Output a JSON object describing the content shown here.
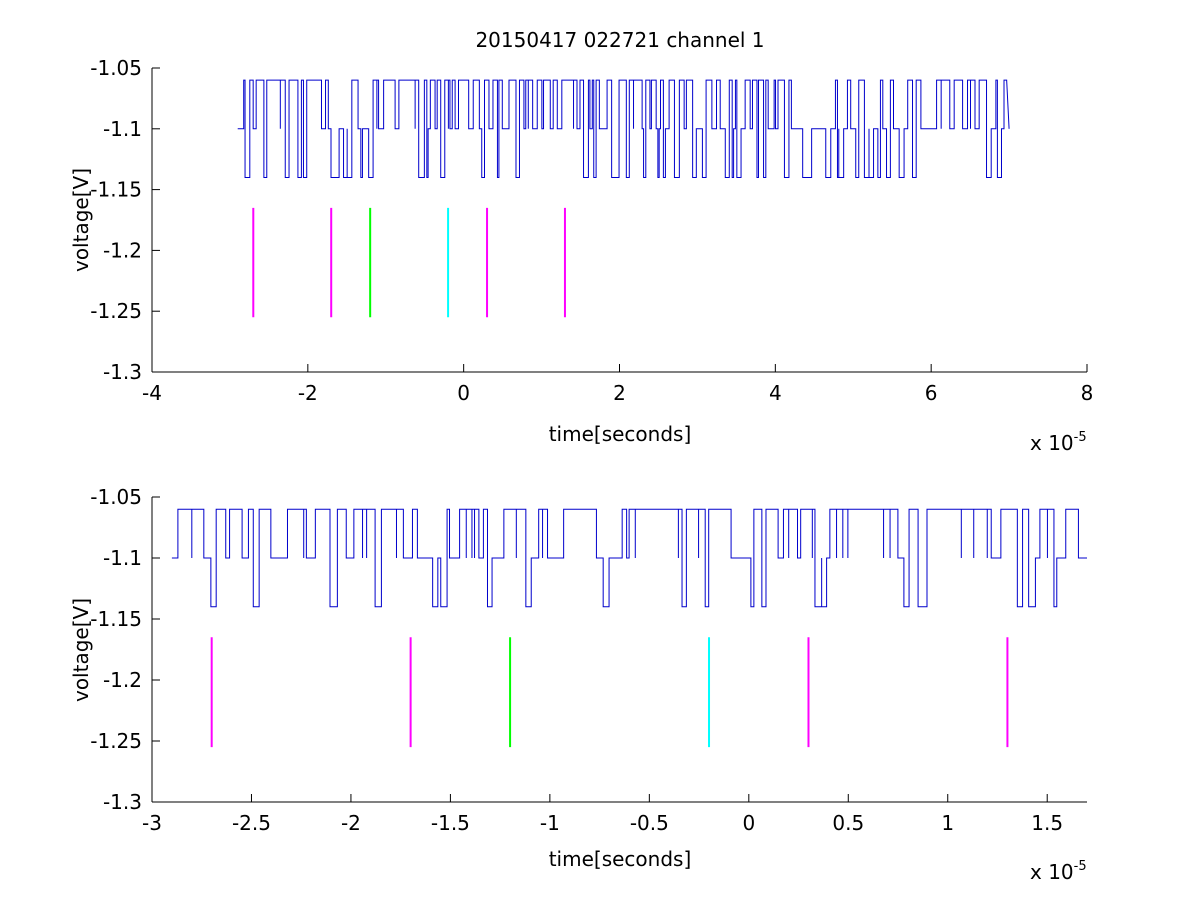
{
  "figure": {
    "title": "20150417 022721 channel 1"
  },
  "chart_data": [
    {
      "type": "line",
      "title": "20150417 022721 channel 1",
      "xlabel": "time[seconds]",
      "ylabel": "voltage[V]",
      "x_exponent_base": "x 10",
      "x_exponent": "-5",
      "xlim": [
        -4,
        8
      ],
      "ylim": [
        -1.3,
        -1.05
      ],
      "xticks": [
        -4,
        -2,
        0,
        2,
        4,
        6,
        8
      ],
      "xtick_labels": [
        "-4",
        "-2",
        "0",
        "2",
        "4",
        "6",
        "8"
      ],
      "yticks": [
        -1.05,
        -1.1,
        -1.15,
        -1.2,
        -1.25,
        -1.3
      ],
      "ytick_labels": [
        "-1.05",
        "-1.1",
        "-1.15",
        "-1.2",
        "-1.25",
        "-1.3"
      ],
      "grid": false,
      "signal": {
        "color": "#0000cc",
        "x_start": -2.9,
        "x_end": 7.0,
        "baseline": -1.1,
        "high": -1.06,
        "low": -1.14
      },
      "markers": [
        {
          "x": -2.7,
          "color": "#ff00ff",
          "y_top": -1.165,
          "y_bottom": -1.255
        },
        {
          "x": -1.7,
          "color": "#ff00ff",
          "y_top": -1.165,
          "y_bottom": -1.255
        },
        {
          "x": -1.2,
          "color": "#00ff00",
          "y_top": -1.165,
          "y_bottom": -1.255
        },
        {
          "x": -0.2,
          "color": "#00ffff",
          "y_top": -1.165,
          "y_bottom": -1.255
        },
        {
          "x": 0.3,
          "color": "#ff00ff",
          "y_top": -1.165,
          "y_bottom": -1.255
        },
        {
          "x": 1.3,
          "color": "#ff00ff",
          "y_top": -1.165,
          "y_bottom": -1.255
        }
      ]
    },
    {
      "type": "line",
      "title": "",
      "xlabel": "time[seconds]",
      "ylabel": "voltage[V]",
      "x_exponent_base": "x 10",
      "x_exponent": "-5",
      "xlim": [
        -3.0,
        1.7
      ],
      "ylim": [
        -1.3,
        -1.05
      ],
      "xticks": [
        -3,
        -2.5,
        -2,
        -1.5,
        -1,
        -0.5,
        0,
        0.5,
        1,
        1.5
      ],
      "xtick_labels": [
        "-3",
        "-2.5",
        "-2",
        "-1.5",
        "-1",
        "-0.5",
        "0",
        "0.5",
        "1",
        "1.5"
      ],
      "yticks": [
        -1.05,
        -1.1,
        -1.15,
        -1.2,
        -1.25,
        -1.3
      ],
      "ytick_labels": [
        "-1.05",
        "-1.1",
        "-1.15",
        "-1.2",
        "-1.25",
        "-1.3"
      ],
      "grid": false,
      "signal": {
        "color": "#0000cc",
        "x_start": -2.9,
        "x_end": 1.7,
        "baseline": -1.1,
        "high": -1.06,
        "low": -1.14
      },
      "markers": [
        {
          "x": -2.7,
          "color": "#ff00ff",
          "y_top": -1.165,
          "y_bottom": -1.255
        },
        {
          "x": -1.7,
          "color": "#ff00ff",
          "y_top": -1.165,
          "y_bottom": -1.255
        },
        {
          "x": -1.2,
          "color": "#00ff00",
          "y_top": -1.165,
          "y_bottom": -1.255
        },
        {
          "x": -0.2,
          "color": "#00ffff",
          "y_top": -1.165,
          "y_bottom": -1.255
        },
        {
          "x": 0.3,
          "color": "#ff00ff",
          "y_top": -1.165,
          "y_bottom": -1.255
        },
        {
          "x": 1.3,
          "color": "#ff00ff",
          "y_top": -1.165,
          "y_bottom": -1.255
        }
      ]
    }
  ]
}
